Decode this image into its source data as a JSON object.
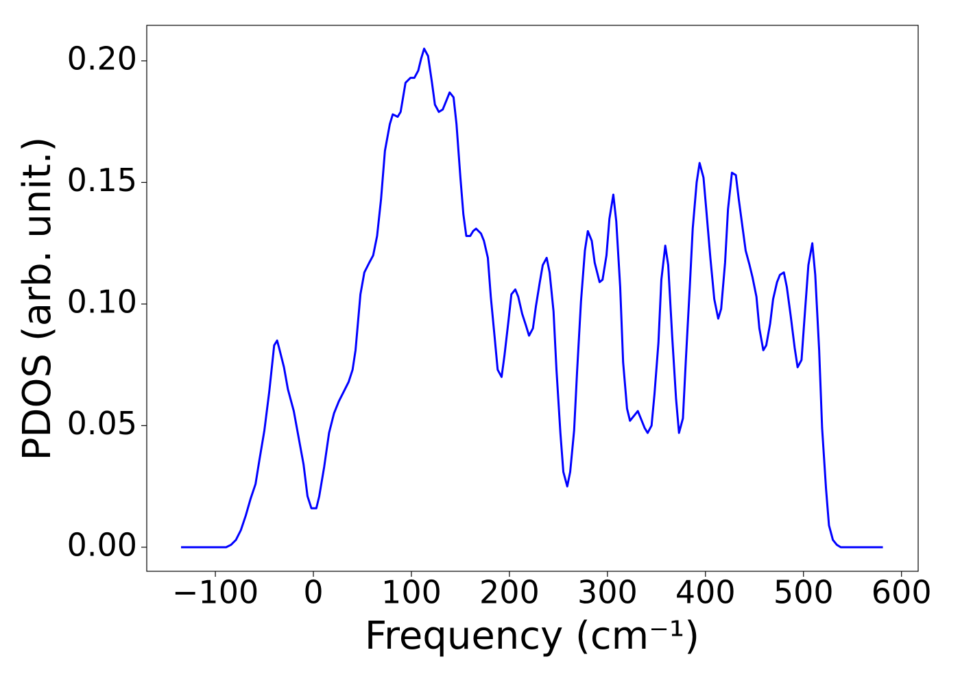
{
  "chart_data": {
    "type": "line",
    "xlabel": "Frequency (cm⁻¹)",
    "ylabel": "PDOS (arb. unit.)",
    "xlim": [
      -170,
      617
    ],
    "ylim": [
      -0.0099,
      0.2146
    ],
    "xticks": [
      {
        "value": -100,
        "label": "−100"
      },
      0,
      100,
      200,
      300,
      400,
      500,
      600
    ],
    "yticks": [
      {
        "value": 0,
        "label": "0.00"
      },
      {
        "value": 0.05,
        "label": "0.05"
      },
      {
        "value": 0.1,
        "label": "0.10"
      },
      {
        "value": 0.15,
        "label": "0.15"
      },
      {
        "value": 0.2,
        "label": "0.20"
      }
    ],
    "grid": false,
    "series": [
      {
        "name": "PDOS",
        "color": "#0000ff",
        "x": [
          -135,
          -89,
          -84,
          -79,
          -74,
          -69,
          -64,
          -59,
          -55,
          -50,
          -45,
          -40,
          -37,
          -35,
          -30,
          -26,
          -20,
          -15,
          -10,
          -6,
          -2,
          3,
          6,
          11,
          16,
          21,
          26,
          31,
          36,
          40,
          43,
          48,
          52,
          57,
          61,
          65,
          69,
          73,
          78,
          81,
          86,
          89,
          94,
          99,
          103,
          107,
          110,
          113,
          117,
          121,
          124,
          128,
          132,
          136,
          139,
          143,
          146,
          150,
          153,
          156,
          160,
          163,
          166,
          171,
          174,
          178,
          181,
          185,
          188,
          192,
          195,
          199,
          202,
          206,
          209,
          213,
          217,
          220,
          224,
          227,
          231,
          234,
          238,
          241,
          245,
          248,
          252,
          255,
          259,
          262,
          266,
          269,
          273,
          277,
          280,
          284,
          287,
          292,
          295,
          299,
          302,
          306,
          309,
          313,
          316,
          320,
          323,
          327,
          331,
          334,
          338,
          341,
          345,
          348,
          352,
          355,
          359,
          362,
          366,
          370,
          373,
          377,
          380,
          384,
          387,
          391,
          394,
          398,
          401,
          405,
          409,
          413,
          416,
          420,
          423,
          427,
          431,
          434,
          438,
          441,
          445,
          448,
          452,
          455,
          459,
          462,
          466,
          469,
          473,
          476,
          480,
          483,
          487,
          491,
          494,
          498,
          501,
          505,
          509,
          512,
          516,
          519,
          523,
          526,
          530,
          534,
          538,
          581
        ],
        "values": [
          0,
          0,
          0.001,
          0.003,
          0.007,
          0.013,
          0.02,
          0.026,
          0.036,
          0.048,
          0.064,
          0.083,
          0.085,
          0.082,
          0.074,
          0.065,
          0.056,
          0.045,
          0.034,
          0.021,
          0.016,
          0.016,
          0.021,
          0.033,
          0.047,
          0.055,
          0.06,
          0.064,
          0.068,
          0.073,
          0.081,
          0.104,
          0.113,
          0.117,
          0.12,
          0.128,
          0.143,
          0.163,
          0.174,
          0.178,
          0.177,
          0.179,
          0.191,
          0.193,
          0.193,
          0.196,
          0.201,
          0.205,
          0.202,
          0.191,
          0.182,
          0.179,
          0.18,
          0.184,
          0.187,
          0.185,
          0.174,
          0.152,
          0.137,
          0.128,
          0.128,
          0.13,
          0.131,
          0.129,
          0.126,
          0.119,
          0.103,
          0.086,
          0.073,
          0.07,
          0.079,
          0.093,
          0.104,
          0.106,
          0.103,
          0.096,
          0.091,
          0.087,
          0.09,
          0.099,
          0.109,
          0.116,
          0.119,
          0.113,
          0.097,
          0.073,
          0.047,
          0.031,
          0.025,
          0.031,
          0.048,
          0.072,
          0.101,
          0.122,
          0.13,
          0.126,
          0.117,
          0.109,
          0.11,
          0.12,
          0.135,
          0.145,
          0.134,
          0.107,
          0.076,
          0.057,
          0.052,
          0.054,
          0.056,
          0.053,
          0.049,
          0.047,
          0.05,
          0.063,
          0.084,
          0.11,
          0.124,
          0.116,
          0.087,
          0.061,
          0.047,
          0.053,
          0.077,
          0.107,
          0.131,
          0.15,
          0.158,
          0.152,
          0.138,
          0.119,
          0.102,
          0.094,
          0.098,
          0.117,
          0.139,
          0.154,
          0.153,
          0.143,
          0.131,
          0.122,
          0.116,
          0.111,
          0.103,
          0.09,
          0.081,
          0.083,
          0.092,
          0.102,
          0.109,
          0.112,
          0.113,
          0.107,
          0.095,
          0.082,
          0.074,
          0.077,
          0.094,
          0.116,
          0.125,
          0.112,
          0.081,
          0.049,
          0.024,
          0.009,
          0.003,
          0.001,
          0,
          0
        ]
      }
    ]
  }
}
